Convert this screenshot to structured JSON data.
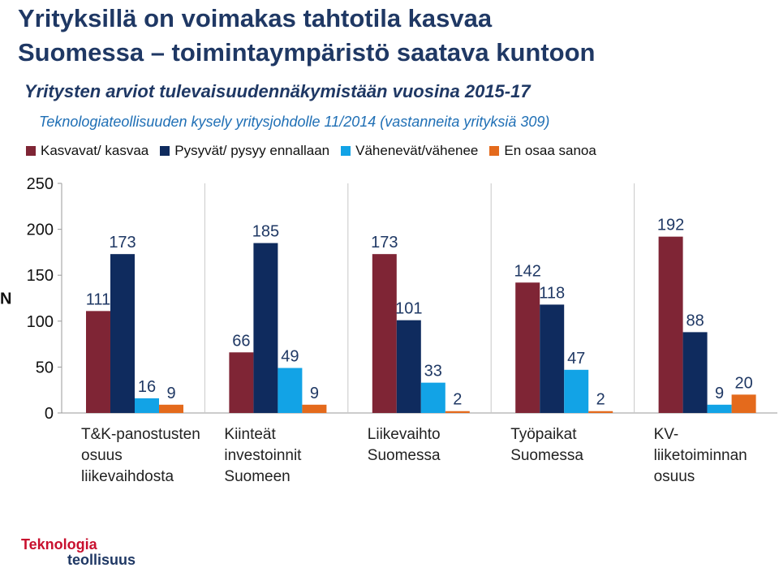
{
  "title_line1": "Yrityksillä on voimakas tahtotila kasvaa",
  "title_line2": "Suomessa – toimintaympäristö saatava kuntoon",
  "subtitle": "Yritysten arviot tulevaisuudennäkymistään vuosina 2015-17",
  "subtitle2": "Teknologiateollisuuden kysely yritysjohdolle 11/2014 (vastanneita yrityksiä 309)",
  "logo": {
    "line1": "Teknologia",
    "line2": "teollisuus"
  },
  "colors": {
    "title": "#1f3864",
    "subtitle2": "#1f6fb5",
    "grid": "#c8c8c8",
    "logo_red": "#c8102e"
  },
  "chart_data": {
    "type": "bar",
    "ylabel": "N",
    "ylim": [
      0,
      250
    ],
    "yticks": [
      0,
      50,
      100,
      150,
      200,
      250
    ],
    "grid": "vertical separators",
    "legend_position": "top",
    "categories": [
      [
        "T&K-panostusten",
        "osuus",
        "liikevaihdosta"
      ],
      [
        "Kiinteät",
        "investoinnit",
        "Suomeen"
      ],
      [
        "Liikevaihto",
        "Suomessa"
      ],
      [
        "Työpaikat",
        "Suomessa"
      ],
      [
        "KV-",
        "liiketoiminnan",
        "osuus"
      ]
    ],
    "series": [
      {
        "name": "Kasvavat/ kasvaa",
        "color": "#7f2535",
        "values": [
          111,
          66,
          173,
          142,
          192
        ]
      },
      {
        "name": "Pysyvät/ pysyy ennallaan",
        "color": "#0f2b5e",
        "values": [
          173,
          185,
          101,
          118,
          88
        ]
      },
      {
        "name": "Vähenevät/vähenee",
        "color": "#12a3e6",
        "values": [
          16,
          49,
          33,
          47,
          9
        ]
      },
      {
        "name": "En osaa sanoa",
        "color": "#e46a1c",
        "values": [
          9,
          9,
          2,
          2,
          20
        ]
      }
    ]
  }
}
